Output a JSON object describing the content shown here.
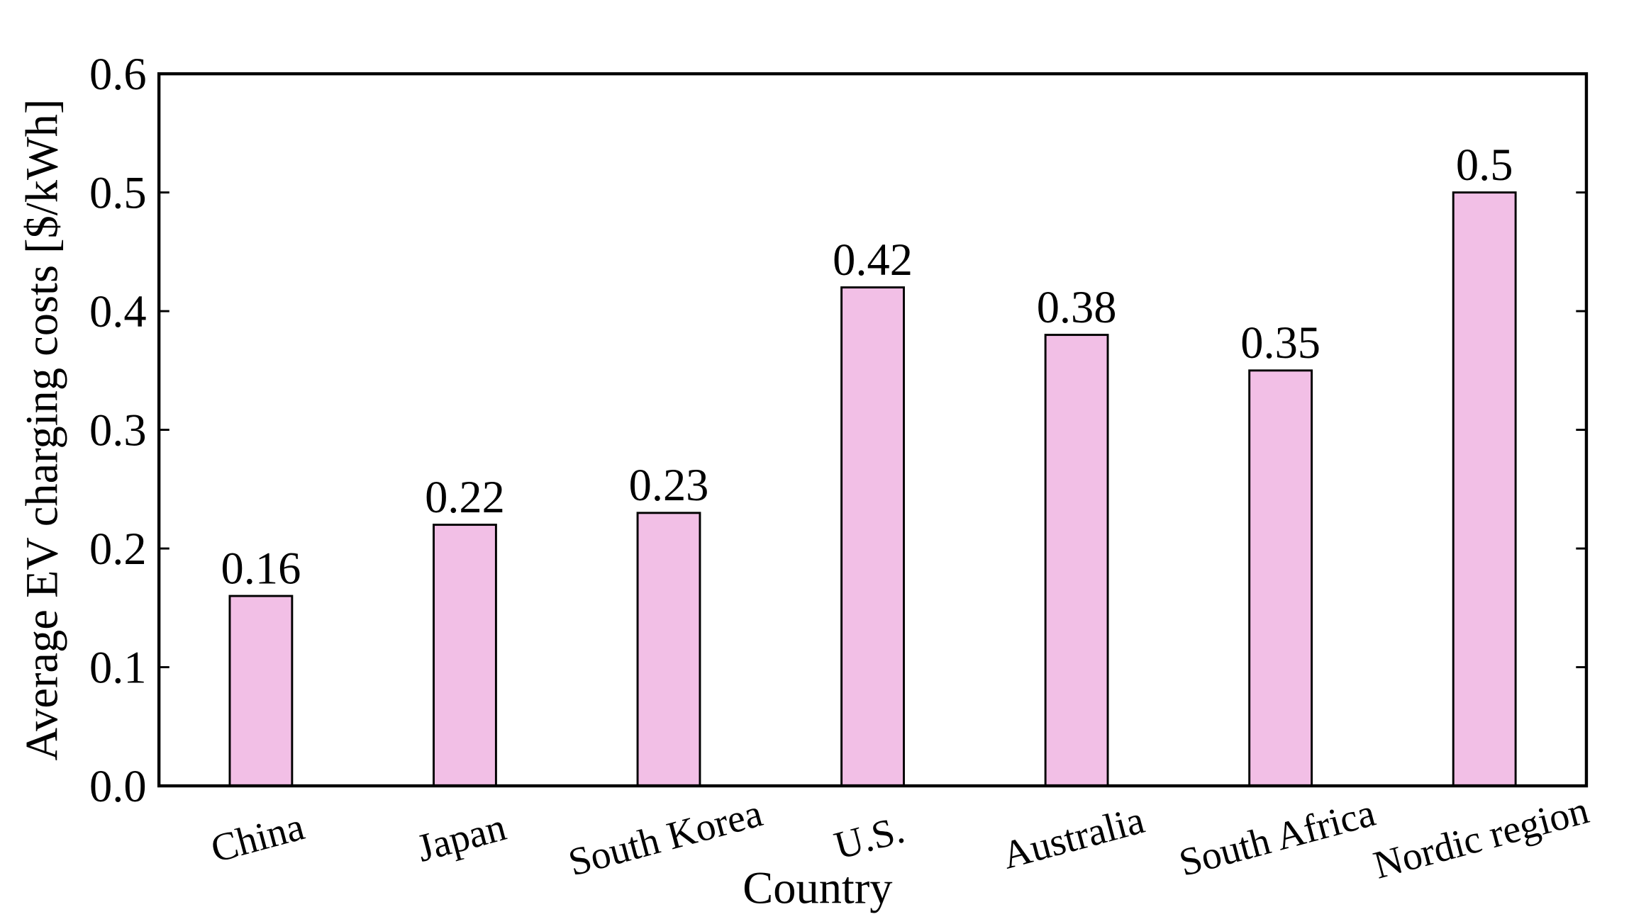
{
  "chart_data": {
    "type": "bar",
    "x_label": "Country",
    "y_label": "Average EV charging costs [$/kWh]",
    "categories": [
      "China",
      "Japan",
      "South Korea",
      "U.S.",
      "Australia",
      "South Africa",
      "Nordic region"
    ],
    "values": [
      0.16,
      0.22,
      0.23,
      0.42,
      0.38,
      0.35,
      0.5
    ],
    "color": "#f2bfe6",
    "ylim": [
      0,
      0.6
    ],
    "yticks": [
      {
        "value": 0,
        "label": "0.0"
      },
      0.1,
      0.2,
      0.3,
      0.4,
      0.5,
      0.6
    ],
    "grid": false
  }
}
